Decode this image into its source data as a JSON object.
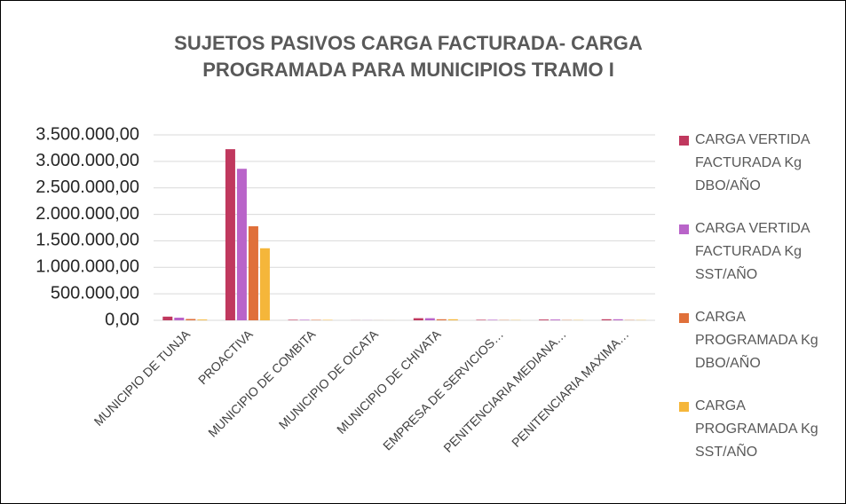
{
  "chart_data": {
    "type": "bar",
    "title": "SUJETOS PASIVOS CARGA FACTURADA- CARGA PROGRAMADA PARA MUNICIPIOS TRAMO I",
    "categories": [
      "MUNICIPIO DE TUNJA",
      "PROACTIVA",
      "MUNICIPIO DE COMBITA",
      "MUNICIPIO DE OICATA",
      "MUNICIPIO DE CHIVATA",
      "EMPRESA DE SERVICIOS…",
      "PENITENCIARIA MEDIANA…",
      "PENITENCIARIA MAXIMA…"
    ],
    "series": [
      {
        "name": "CARGA VERTIDA FACTURADA Kg DBO/AÑO",
        "color": "#c0385e",
        "values": [
          70000,
          3230000,
          10000,
          2000,
          40000,
          10000,
          15000,
          20000
        ]
      },
      {
        "name": "CARGA VERTIDA FACTURADA Kg SST/AÑO",
        "color": "#b964c9",
        "values": [
          50000,
          2860000,
          10000,
          2000,
          40000,
          10000,
          15000,
          20000
        ]
      },
      {
        "name": "CARGA PROGRAMADA Kg DBO/AÑO",
        "color": "#e0703a",
        "values": [
          25000,
          1775000,
          8000,
          1000,
          20000,
          5000,
          5000,
          5000
        ]
      },
      {
        "name": "CARGA PROGRAMADA Kg SST/AÑO",
        "color": "#f5b63a",
        "values": [
          15000,
          1360000,
          8000,
          1000,
          20000,
          5000,
          5000,
          5000
        ]
      }
    ],
    "ylim": [
      0,
      3500000
    ],
    "yticks": [
      {
        "value": 0,
        "label": "0,00"
      },
      {
        "value": 500000,
        "label": "500.000,00"
      },
      {
        "value": 1000000,
        "label": "1.000.000,00"
      },
      {
        "value": 1500000,
        "label": "1.500.000,00"
      },
      {
        "value": 2000000,
        "label": "2.000.000,00"
      },
      {
        "value": 2500000,
        "label": "2.500.000,00"
      },
      {
        "value": 3000000,
        "label": "3.000.000,00"
      },
      {
        "value": 3500000,
        "label": "3.500.000,00"
      }
    ],
    "grid": true,
    "legend": "right"
  }
}
